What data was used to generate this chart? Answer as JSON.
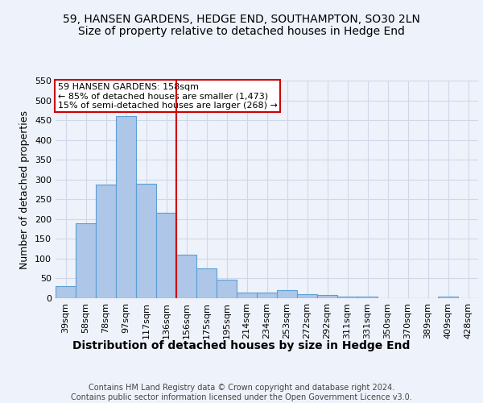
{
  "title1": "59, HANSEN GARDENS, HEDGE END, SOUTHAMPTON, SO30 2LN",
  "title2": "Size of property relative to detached houses in Hedge End",
  "xlabel": "Distribution of detached houses by size in Hedge End",
  "ylabel": "Number of detached properties",
  "categories": [
    "39sqm",
    "58sqm",
    "78sqm",
    "97sqm",
    "117sqm",
    "136sqm",
    "156sqm",
    "175sqm",
    "195sqm",
    "214sqm",
    "234sqm",
    "253sqm",
    "272sqm",
    "292sqm",
    "311sqm",
    "331sqm",
    "350sqm",
    "370sqm",
    "389sqm",
    "409sqm",
    "428sqm"
  ],
  "values": [
    30,
    190,
    288,
    460,
    290,
    215,
    110,
    75,
    47,
    14,
    14,
    20,
    10,
    8,
    5,
    5,
    0,
    0,
    0,
    5,
    0
  ],
  "bar_color": "#aec6e8",
  "bar_edge_color": "#5a9fd4",
  "grid_color": "#d0d8e8",
  "background_color": "#eef2fa",
  "vline_x": 5.5,
  "vline_color": "#cc0000",
  "annotation_text": "59 HANSEN GARDENS: 158sqm\n← 85% of detached houses are smaller (1,473)\n15% of semi-detached houses are larger (268) →",
  "annotation_box_color": "#ffffff",
  "annotation_box_edge": "#cc0000",
  "footer_text": "Contains HM Land Registry data © Crown copyright and database right 2024.\nContains public sector information licensed under the Open Government Licence v3.0.",
  "ylim": [
    0,
    550
  ],
  "yticks": [
    0,
    50,
    100,
    150,
    200,
    250,
    300,
    350,
    400,
    450,
    500,
    550
  ],
  "title1_fontsize": 10,
  "title2_fontsize": 10,
  "xlabel_fontsize": 10,
  "ylabel_fontsize": 9,
  "tick_fontsize": 8,
  "annotation_fontsize": 8,
  "footer_fontsize": 7
}
